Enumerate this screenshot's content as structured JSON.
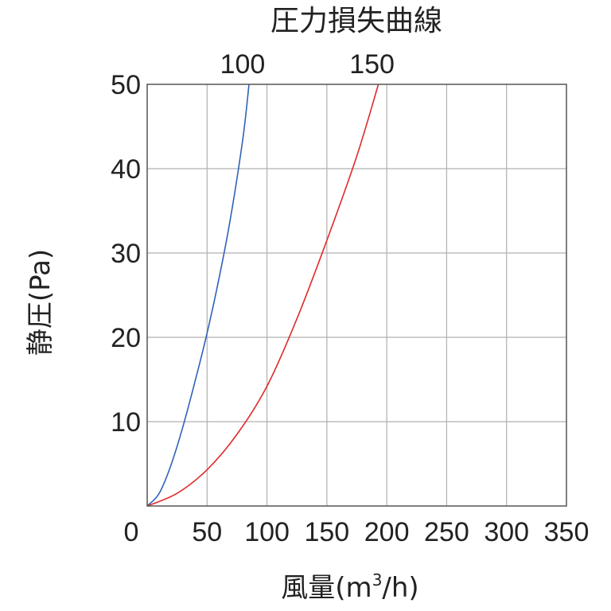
{
  "chart_data": {
    "type": "line",
    "title": "圧力損失曲線",
    "xlabel": {
      "main": "風量",
      "open": "(m",
      "sup": "3",
      "close": "/h)"
    },
    "ylabel": "静圧(Pa)",
    "xlim": [
      0,
      350
    ],
    "ylim": [
      0,
      50
    ],
    "x_ticks": [
      0,
      50,
      100,
      150,
      200,
      250,
      300,
      350
    ],
    "y_ticks": [
      10,
      20,
      30,
      40,
      50
    ],
    "x_tick_labels": [
      "0",
      "50",
      "100",
      "150",
      "200",
      "250",
      "300",
      "350"
    ],
    "y_tick_labels": [
      "10",
      "20",
      "30",
      "40",
      "50"
    ],
    "grid": true,
    "series": [
      {
        "name": "100",
        "color": "#2f62b8",
        "x": [
          0,
          10,
          20,
          30,
          40,
          50,
          60,
          70,
          80,
          85
        ],
        "y": [
          0,
          1.5,
          4.9,
          9.5,
          14.8,
          20.5,
          27,
          34.5,
          43.7,
          50
        ]
      },
      {
        "name": "150",
        "color": "#e02a2a",
        "x": [
          0,
          25,
          50,
          75,
          100,
          125,
          150,
          175,
          193
        ],
        "y": [
          0,
          1.5,
          4.3,
          8.5,
          14.2,
          22.2,
          31.5,
          41.5,
          50
        ]
      }
    ]
  }
}
